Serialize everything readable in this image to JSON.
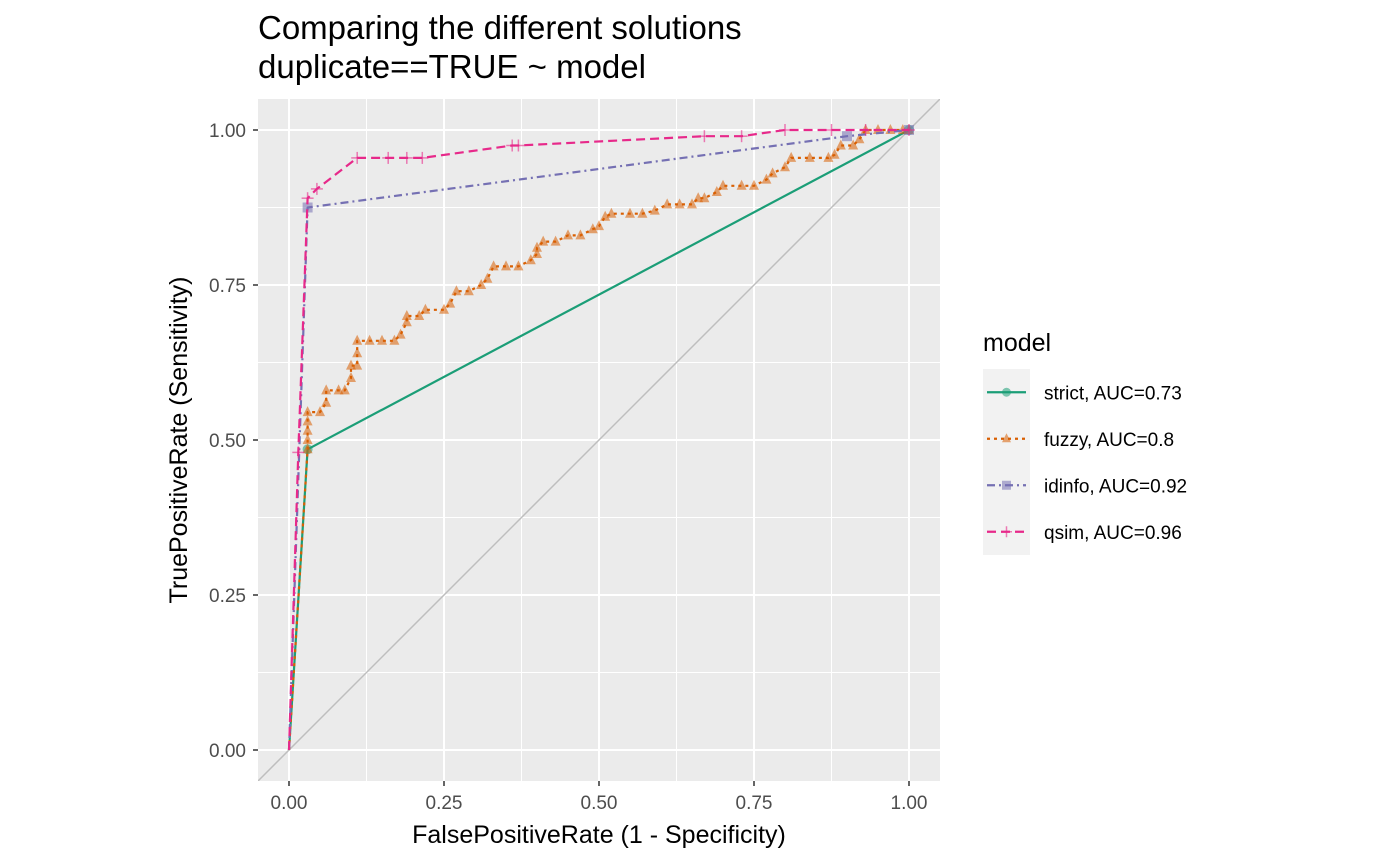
{
  "chart_data": {
    "type": "line",
    "title_lines": [
      "Comparing the different solutions",
      "duplicate==TRUE ~ model"
    ],
    "xlabel": "FalsePositiveRate (1 - Specificity)",
    "ylabel": "TruePositiveRate (Sensitivity)",
    "xlim": [
      -0.05,
      1.05
    ],
    "ylim": [
      -0.05,
      1.05
    ],
    "x_ticks": [
      0,
      0.25,
      0.5,
      0.75,
      1
    ],
    "x_tick_labels": [
      "0.00",
      "0.25",
      "0.50",
      "0.75",
      "1.00"
    ],
    "y_ticks": [
      0,
      0.25,
      0.5,
      0.75,
      1
    ],
    "y_tick_labels": [
      "0.00",
      "0.25",
      "0.50",
      "0.75",
      "1.00"
    ],
    "grid": true,
    "panel_background": "#ebebeb",
    "reference_line": {
      "from": [
        -0.05,
        -0.05
      ],
      "to": [
        1.05,
        1.05
      ],
      "color": "#bebebe"
    },
    "legend": {
      "title": "model",
      "position": "right"
    },
    "series": [
      {
        "name": "strict, AUC=0.73",
        "color": "#1b9e77",
        "dash": "solid",
        "marker": "circle",
        "points": [
          [
            0,
            0
          ],
          [
            0.03,
            0.485
          ],
          [
            1,
            1
          ]
        ]
      },
      {
        "name": "fuzzy, AUC=0.8",
        "color": "#d95f02",
        "dash": "dotted",
        "marker": "triangle",
        "points": [
          [
            0,
            0
          ],
          [
            0.03,
            0.485
          ],
          [
            0.03,
            0.5
          ],
          [
            0.03,
            0.515
          ],
          [
            0.03,
            0.53
          ],
          [
            0.03,
            0.545
          ],
          [
            0.05,
            0.545
          ],
          [
            0.06,
            0.56
          ],
          [
            0.06,
            0.58
          ],
          [
            0.08,
            0.58
          ],
          [
            0.09,
            0.58
          ],
          [
            0.1,
            0.6
          ],
          [
            0.1,
            0.62
          ],
          [
            0.11,
            0.62
          ],
          [
            0.11,
            0.64
          ],
          [
            0.11,
            0.66
          ],
          [
            0.13,
            0.66
          ],
          [
            0.15,
            0.66
          ],
          [
            0.17,
            0.66
          ],
          [
            0.18,
            0.67
          ],
          [
            0.19,
            0.69
          ],
          [
            0.19,
            0.7
          ],
          [
            0.21,
            0.7
          ],
          [
            0.22,
            0.71
          ],
          [
            0.25,
            0.71
          ],
          [
            0.26,
            0.72
          ],
          [
            0.27,
            0.74
          ],
          [
            0.29,
            0.74
          ],
          [
            0.31,
            0.75
          ],
          [
            0.32,
            0.76
          ],
          [
            0.33,
            0.78
          ],
          [
            0.35,
            0.78
          ],
          [
            0.37,
            0.78
          ],
          [
            0.39,
            0.79
          ],
          [
            0.4,
            0.8
          ],
          [
            0.4,
            0.81
          ],
          [
            0.41,
            0.82
          ],
          [
            0.43,
            0.82
          ],
          [
            0.45,
            0.83
          ],
          [
            0.47,
            0.83
          ],
          [
            0.49,
            0.84
          ],
          [
            0.5,
            0.845
          ],
          [
            0.51,
            0.86
          ],
          [
            0.52,
            0.865
          ],
          [
            0.55,
            0.865
          ],
          [
            0.57,
            0.865
          ],
          [
            0.59,
            0.87
          ],
          [
            0.61,
            0.88
          ],
          [
            0.63,
            0.88
          ],
          [
            0.65,
            0.88
          ],
          [
            0.66,
            0.89
          ],
          [
            0.67,
            0.89
          ],
          [
            0.69,
            0.9
          ],
          [
            0.7,
            0.91
          ],
          [
            0.73,
            0.91
          ],
          [
            0.75,
            0.91
          ],
          [
            0.77,
            0.92
          ],
          [
            0.78,
            0.93
          ],
          [
            0.8,
            0.94
          ],
          [
            0.81,
            0.955
          ],
          [
            0.84,
            0.955
          ],
          [
            0.87,
            0.955
          ],
          [
            0.88,
            0.96
          ],
          [
            0.89,
            0.975
          ],
          [
            0.91,
            0.975
          ],
          [
            0.92,
            0.985
          ],
          [
            0.93,
            1
          ],
          [
            0.95,
            1
          ],
          [
            0.97,
            1
          ],
          [
            0.99,
            1
          ],
          [
            1,
            1
          ]
        ]
      },
      {
        "name": "idinfo, AUC=0.92",
        "color": "#7570b3",
        "dash": "dashdot",
        "marker": "square",
        "points": [
          [
            0,
            0
          ],
          [
            0.03,
            0.875
          ],
          [
            0.9,
            0.99
          ],
          [
            1,
            1
          ]
        ]
      },
      {
        "name": "qsim, AUC=0.96",
        "color": "#e7298a",
        "dash": "dashed",
        "marker": "plus",
        "points": [
          [
            0,
            0
          ],
          [
            0.015,
            0.48
          ],
          [
            0.03,
            0.89
          ],
          [
            0.045,
            0.905
          ],
          [
            0.11,
            0.955
          ],
          [
            0.16,
            0.955
          ],
          [
            0.19,
            0.955
          ],
          [
            0.215,
            0.955
          ],
          [
            0.36,
            0.975
          ],
          [
            0.37,
            0.975
          ],
          [
            0.67,
            0.99
          ],
          [
            0.73,
            0.99
          ],
          [
            0.8,
            1
          ],
          [
            0.875,
            1
          ],
          [
            0.93,
            1
          ],
          [
            1,
            1
          ]
        ]
      }
    ]
  }
}
